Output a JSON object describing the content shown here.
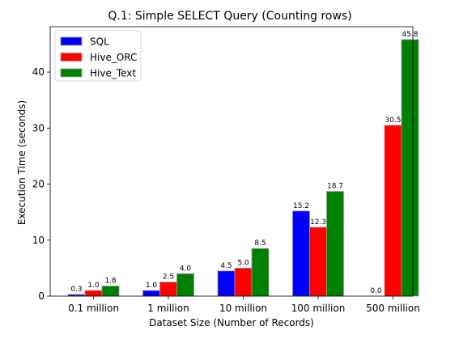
{
  "chart_data": {
    "type": "bar",
    "title": "Q.1: Simple SELECT Query (Counting rows)",
    "xlabel": "Dataset Size (Number of Records)",
    "ylabel": "Execution Time (seconds)",
    "categories": [
      "0.1 million",
      "1 million",
      "10 million",
      "100 million",
      "500 million"
    ],
    "series": [
      {
        "name": "SQL",
        "color": "#0000ff",
        "values": [
          0.3,
          1.0,
          4.5,
          15.2,
          0.0
        ],
        "labels": [
          "0.3",
          "1.0",
          "4.5",
          "15.2",
          "0.0"
        ]
      },
      {
        "name": "Hive_ORC",
        "color": "#ff0000",
        "values": [
          1.0,
          2.5,
          5.0,
          12.3,
          30.5
        ],
        "labels": [
          "1.0",
          "2.5",
          "5.0",
          "12.3",
          "30.5"
        ]
      },
      {
        "name": "Hive_Text",
        "color": "#008000",
        "values": [
          1.8,
          4.0,
          8.5,
          18.7,
          45.8
        ],
        "labels": [
          "1.8",
          "4.0",
          "8.5",
          "18.7",
          "45.8"
        ]
      }
    ],
    "yticks": [
      0,
      10,
      20,
      30,
      40
    ],
    "ytick_labels": [
      "0",
      "10",
      "20",
      "30",
      "40"
    ],
    "ylim": [
      0,
      48.1
    ],
    "grid": false,
    "legend_position": "top-left"
  }
}
